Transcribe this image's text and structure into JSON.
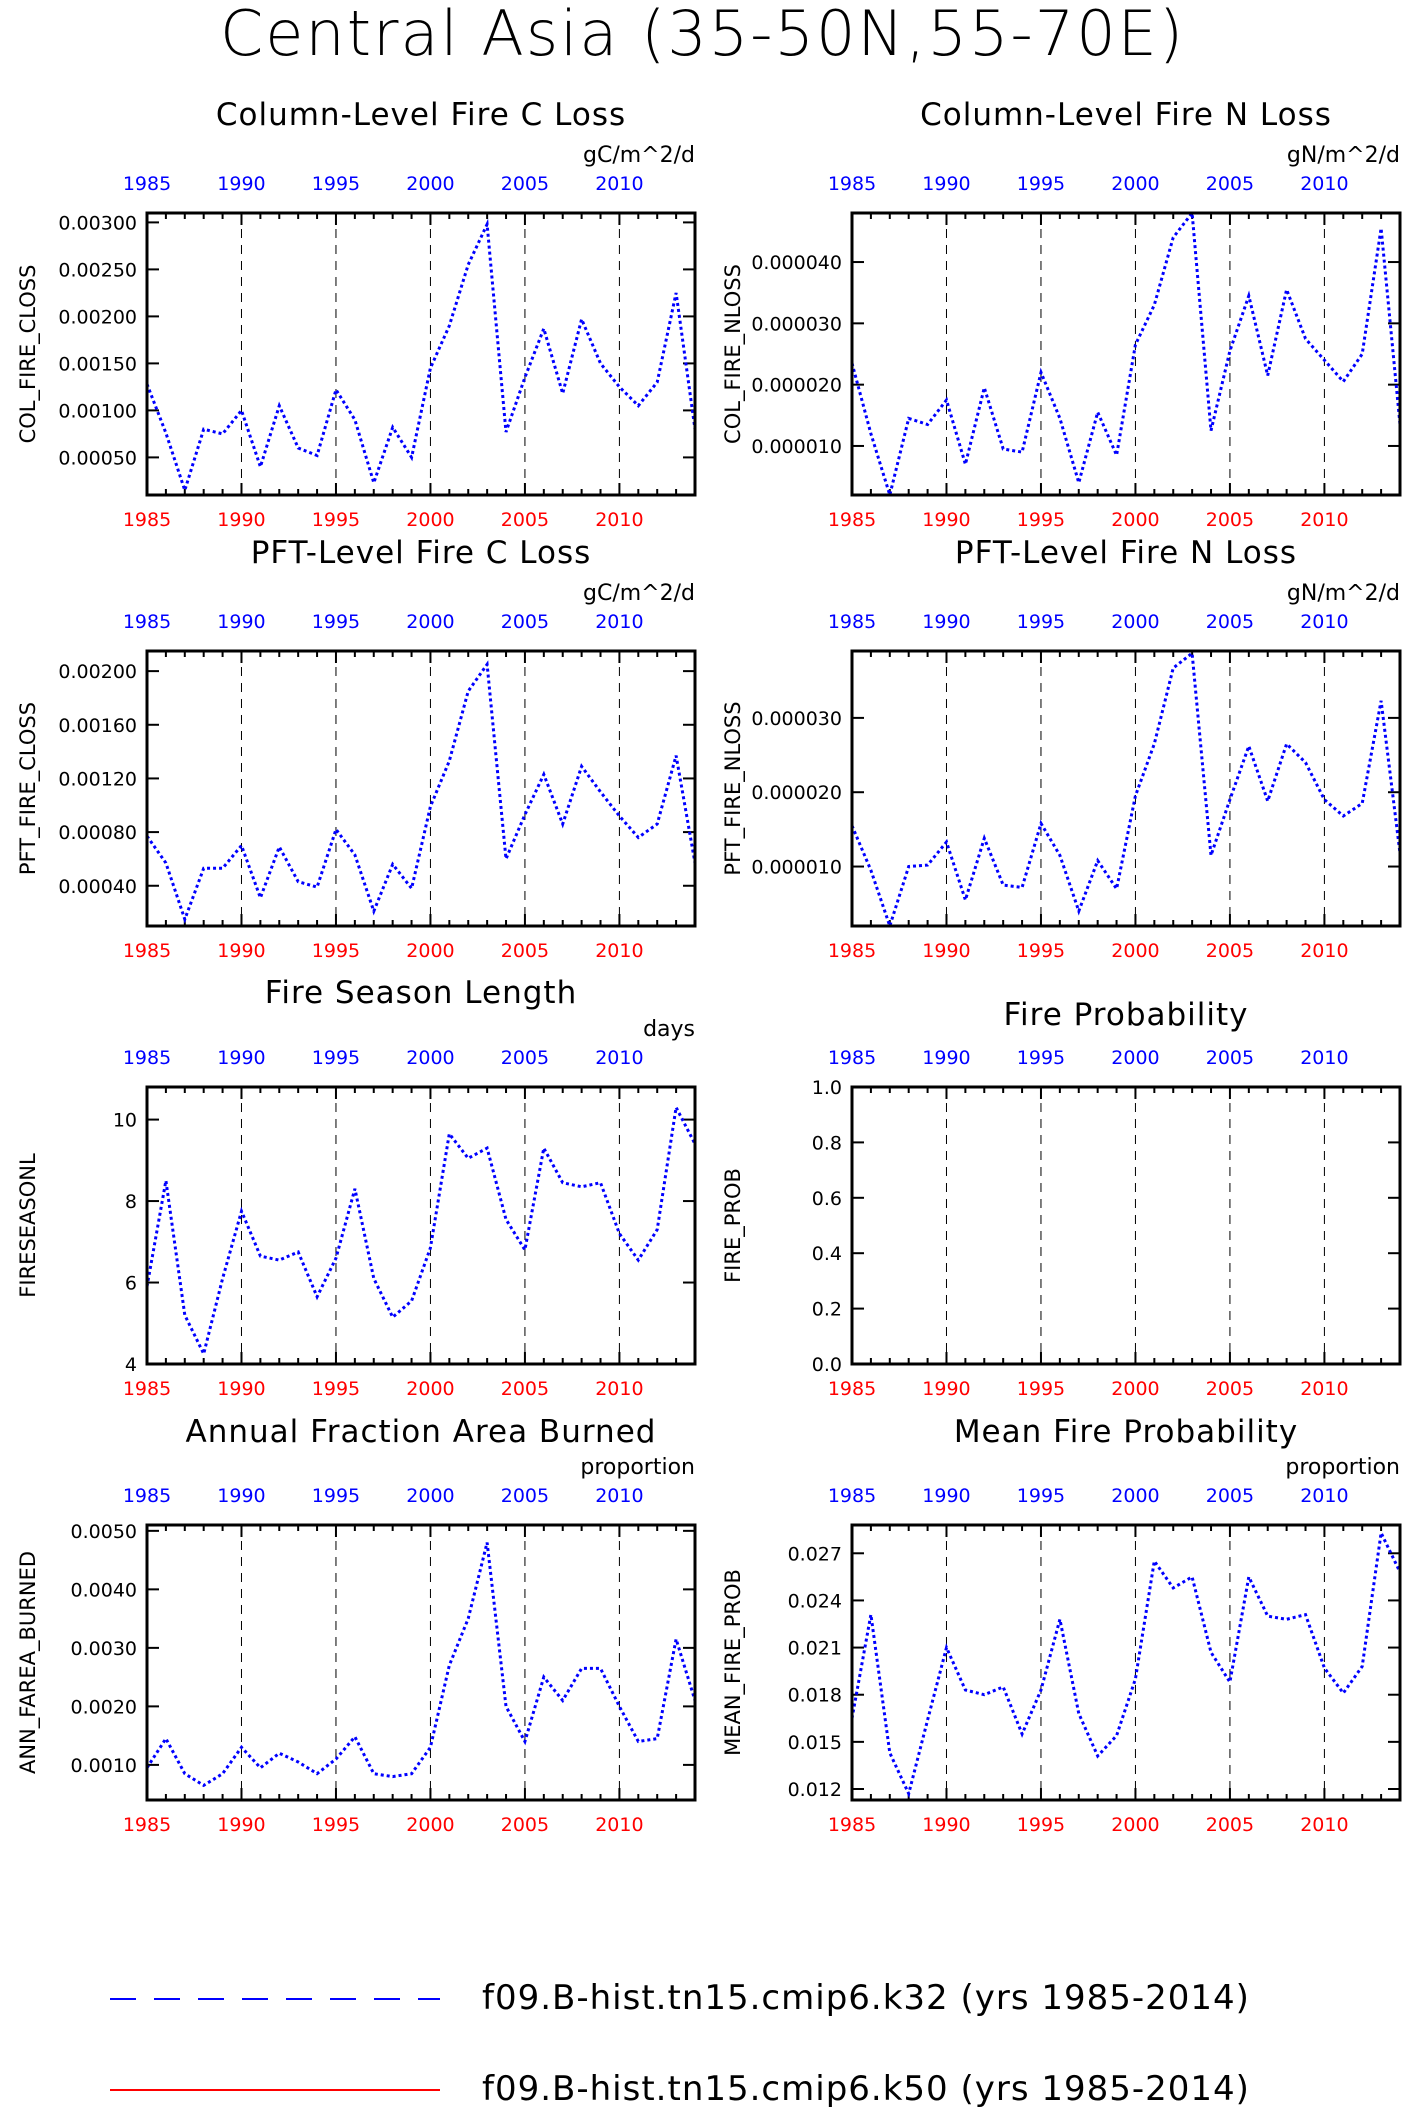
{
  "title": "Central Asia (35-50N,55-70E)",
  "years": [
    1985,
    1986,
    1987,
    1988,
    1989,
    1990,
    1991,
    1992,
    1993,
    1994,
    1995,
    1996,
    1997,
    1998,
    1999,
    2000,
    2001,
    2002,
    2003,
    2004,
    2005,
    2006,
    2007,
    2008,
    2009,
    2010,
    2011,
    2012,
    2013,
    2014
  ],
  "colors": {
    "series": "#0000ff",
    "series2": "#ff0000",
    "top_ticks": "#0000ff",
    "bottom_ticks": "#ff0000"
  },
  "legend": [
    {
      "label": "f09.B-hist.tn15.cmip6.k32 (yrs 1985-2014)",
      "style": "dashed",
      "color": "#0000ff"
    },
    {
      "label": "f09.B-hist.tn15.cmip6.k50 (yrs 1985-2014)",
      "style": "solid",
      "color": "#ff0000"
    }
  ],
  "chart_data": [
    {
      "type": "line",
      "title": "Column-Level Fire C Loss",
      "units": "gC/m^2/d",
      "ylabel": "COL_FIRE_CLOSS",
      "xlim": [
        1985,
        2014
      ],
      "ylim": [
        0.0001,
        0.0031
      ],
      "yticks": [
        "0.00050",
        "0.00100",
        "0.00150",
        "0.00200",
        "0.00250",
        "0.00300"
      ],
      "ytick_values": [
        0.0005,
        0.001,
        0.0015,
        0.002,
        0.0025,
        0.003
      ],
      "xticks": [
        "1985",
        "1990",
        "1995",
        "2000",
        "2005",
        "2010"
      ],
      "values": [
        0.00128,
        0.00076,
        0.00015,
        0.0008,
        0.00075,
        0.001,
        0.0004,
        0.00105,
        0.0006,
        0.00052,
        0.00122,
        0.0009,
        0.00023,
        0.00082,
        0.0005,
        0.00145,
        0.0019,
        0.00255,
        0.00298,
        0.00077,
        0.00135,
        0.00187,
        0.00118,
        0.00197,
        0.0015,
        0.00125,
        0.00105,
        0.0013,
        0.00225,
        0.0008
      ]
    },
    {
      "type": "line",
      "title": "Column-Level Fire N Loss",
      "units": "gN/m^2/d",
      "ylabel": "COL_FIRE_NLOSS",
      "xlim": [
        1985,
        2014
      ],
      "ylim": [
        2e-06,
        4.8e-05
      ],
      "yticks": [
        "0.000010",
        "0.000020",
        "0.000030",
        "0.000040"
      ],
      "ytick_values": [
        1e-05,
        2e-05,
        3e-05,
        4e-05
      ],
      "xticks": [
        "1985",
        "1990",
        "1995",
        "2000",
        "2005",
        "2010"
      ],
      "values": [
        2.35e-05,
        1.2e-05,
        2e-06,
        1.45e-05,
        1.35e-05,
        1.75e-05,
        7e-06,
        1.95e-05,
        9.5e-06,
        9e-06,
        2.2e-05,
        1.45e-05,
        4e-06,
        1.55e-05,
        8.5e-06,
        2.65e-05,
        3.3e-05,
        4.4e-05,
        4.8e-05,
        1.25e-05,
        2.55e-05,
        3.45e-05,
        2.15e-05,
        3.55e-05,
        2.75e-05,
        2.4e-05,
        2.05e-05,
        2.5e-05,
        4.55e-05,
        1.35e-05
      ]
    },
    {
      "type": "line",
      "title": "PFT-Level Fire C Loss",
      "units": "gC/m^2/d",
      "ylabel": "PFT_FIRE_CLOSS",
      "xlim": [
        1985,
        2014
      ],
      "ylim": [
        0.0001,
        0.00215
      ],
      "yticks": [
        "0.00040",
        "0.00080",
        "0.00120",
        "0.00160",
        "0.00200"
      ],
      "ytick_values": [
        0.0004,
        0.0008,
        0.0012,
        0.0016,
        0.002
      ],
      "xticks": [
        "1985",
        "1990",
        "1995",
        "2000",
        "2005",
        "2010"
      ],
      "values": [
        0.00077,
        0.00057,
        0.00015,
        0.00053,
        0.00053,
        0.0007,
        0.00031,
        0.00069,
        0.00043,
        0.00039,
        0.00082,
        0.00063,
        0.00021,
        0.00056,
        0.00038,
        0.00099,
        0.00133,
        0.00185,
        0.00205,
        0.0006,
        0.00093,
        0.00123,
        0.00086,
        0.00129,
        0.0011,
        0.00092,
        0.00076,
        0.00086,
        0.00137,
        0.00057
      ]
    },
    {
      "type": "line",
      "title": "PFT-Level Fire N Loss",
      "units": "gN/m^2/d",
      "ylabel": "PFT_FIRE_NLOSS",
      "xlim": [
        1985,
        2014
      ],
      "ylim": [
        2e-06,
        3.9e-05
      ],
      "yticks": [
        "0.000010",
        "0.000020",
        "0.000030"
      ],
      "ytick_values": [
        1e-05,
        2e-05,
        3e-05
      ],
      "xticks": [
        "1985",
        "1990",
        "1995",
        "2000",
        "2005",
        "2010"
      ],
      "values": [
        1.55e-05,
        9.5e-06,
        2e-06,
        1e-05,
        1.02e-05,
        1.33e-05,
        5.5e-06,
        1.38e-05,
        7.5e-06,
        7.2e-06,
        1.58e-05,
        1.15e-05,
        4e-06,
        1.08e-05,
        7e-06,
        1.95e-05,
        2.65e-05,
        3.67e-05,
        3.87e-05,
        1.15e-05,
        1.9e-05,
        2.62e-05,
        1.88e-05,
        2.65e-05,
        2.4e-05,
        1.9e-05,
        1.68e-05,
        1.85e-05,
        3.23e-05,
        1.18e-05
      ]
    },
    {
      "type": "line",
      "title": "Fire Season Length",
      "units": "days",
      "ylabel": "FIRESEASONL",
      "xlim": [
        1985,
        2014
      ],
      "ylim": [
        4,
        10.8
      ],
      "yticks": [
        "4",
        "6",
        "8",
        "10"
      ],
      "ytick_values": [
        4,
        6,
        8,
        10
      ],
      "xticks": [
        "1985",
        "1990",
        "1995",
        "2000",
        "2005",
        "2010"
      ],
      "values": [
        5.9,
        8.5,
        5.2,
        4.25,
        6.1,
        7.75,
        6.65,
        6.55,
        6.75,
        5.65,
        6.6,
        8.3,
        6.1,
        5.15,
        5.55,
        6.85,
        9.65,
        9.05,
        9.3,
        7.55,
        6.8,
        9.3,
        8.45,
        8.35,
        8.45,
        7.2,
        6.55,
        7.3,
        10.3,
        9.4
      ]
    },
    {
      "type": "line",
      "title": "Fire Probability",
      "units": "",
      "ylabel": "FIRE_PROB",
      "xlim": [
        1985,
        2014
      ],
      "ylim": [
        0,
        1
      ],
      "yticks": [
        "0.0",
        "0.2",
        "0.4",
        "0.6",
        "0.8",
        "1.0"
      ],
      "ytick_values": [
        0,
        0.2,
        0.4,
        0.6,
        0.8,
        1.0
      ],
      "xticks": [
        "1985",
        "1990",
        "1995",
        "2000",
        "2005",
        "2010"
      ],
      "values": []
    },
    {
      "type": "line",
      "title": "Annual Fraction Area Burned",
      "units": "proportion",
      "ylabel": "ANN_FAREA_BURNED",
      "xlim": [
        1985,
        2014
      ],
      "ylim": [
        0.0004,
        0.0051
      ],
      "yticks": [
        "0.0010",
        "0.0020",
        "0.0030",
        "0.0040",
        "0.0050"
      ],
      "ytick_values": [
        0.001,
        0.002,
        0.003,
        0.004,
        0.005
      ],
      "xticks": [
        "1985",
        "1990",
        "1995",
        "2000",
        "2005",
        "2010"
      ],
      "values": [
        0.00095,
        0.00145,
        0.00085,
        0.00065,
        0.00085,
        0.0013,
        0.00095,
        0.0012,
        0.00105,
        0.00085,
        0.0011,
        0.00148,
        0.00085,
        0.0008,
        0.00085,
        0.0013,
        0.0027,
        0.0035,
        0.0048,
        0.002,
        0.0014,
        0.0025,
        0.0021,
        0.00265,
        0.00265,
        0.002,
        0.0014,
        0.00145,
        0.00315,
        0.0021
      ]
    },
    {
      "type": "line",
      "title": "Mean Fire Probability",
      "units": "proportion",
      "ylabel": "MEAN_FIRE_PROB",
      "xlim": [
        1985,
        2014
      ],
      "ylim": [
        0.0113,
        0.0288
      ],
      "yticks": [
        "0.012",
        "0.015",
        "0.018",
        "0.021",
        "0.024",
        "0.027"
      ],
      "ytick_values": [
        0.012,
        0.015,
        0.018,
        0.021,
        0.024,
        0.027
      ],
      "xticks": [
        "1985",
        "1990",
        "1995",
        "2000",
        "2005",
        "2010"
      ],
      "values": [
        0.0165,
        0.0231,
        0.0143,
        0.0117,
        0.0164,
        0.021,
        0.0183,
        0.018,
        0.0185,
        0.0155,
        0.0183,
        0.0228,
        0.0168,
        0.0141,
        0.0154,
        0.019,
        0.0265,
        0.0248,
        0.0255,
        0.0207,
        0.0188,
        0.0255,
        0.023,
        0.0228,
        0.0231,
        0.0197,
        0.0181,
        0.0198,
        0.0283,
        0.0258
      ]
    }
  ]
}
